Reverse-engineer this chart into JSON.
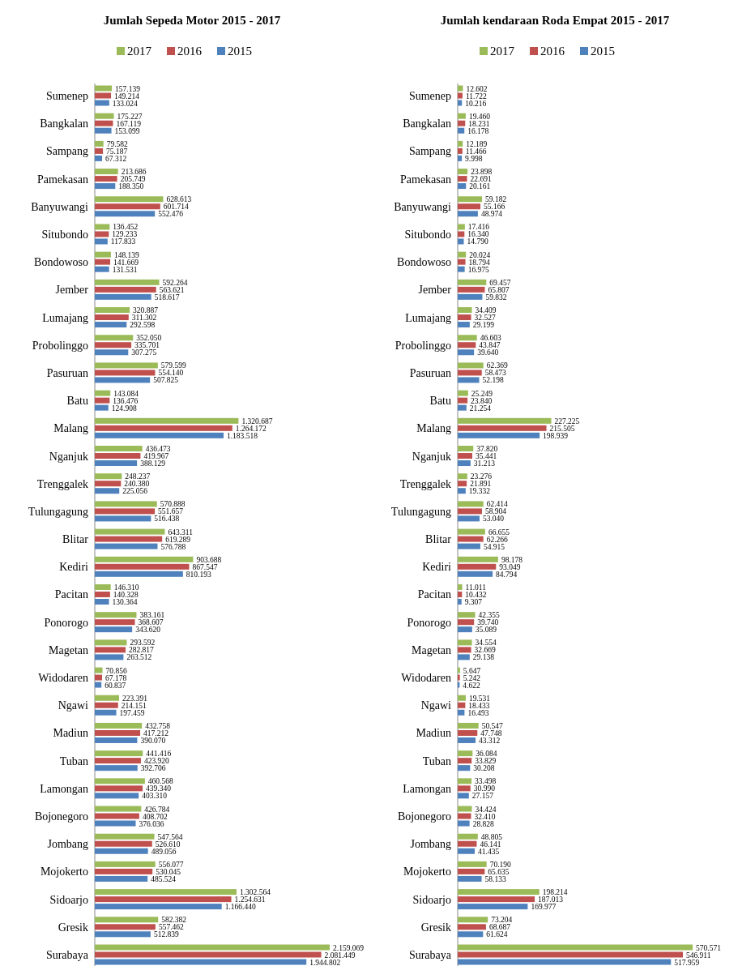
{
  "chart_data": [
    {
      "type": "bar",
      "orientation": "horizontal",
      "title": "Jumlah Sepeda Motor 2015 - 2017",
      "legend": "top",
      "categories": [
        "Sumenep",
        "Bangkalan",
        "Sampang",
        "Pamekasan",
        "Banyuwangi",
        "Situbondo",
        "Bondowoso",
        "Jember",
        "Lumajang",
        "Probolinggo",
        "Pasuruan",
        "Batu",
        "Malang",
        "Nganjuk",
        "Trenggalek",
        "Tulungagung",
        "Blitar",
        "Kediri",
        "Pacitan",
        "Ponorogo",
        "Magetan",
        "Widodaren",
        "Ngawi",
        "Madiun",
        "Tuban",
        "Lamongan",
        "Bojonegoro",
        "Jombang",
        "Mojokerto",
        "Sidoarjo",
        "Gresik",
        "Surabaya"
      ],
      "series": [
        {
          "name": "2017",
          "color": "#9bbb59",
          "values": [
            157139,
            175227,
            79582,
            213686,
            628613,
            136452,
            148139,
            592264,
            320887,
            352050,
            579599,
            143084,
            1320687,
            436473,
            248237,
            570888,
            643311,
            903688,
            146310,
            383161,
            293592,
            70856,
            223391,
            432758,
            441416,
            460568,
            426784,
            547564,
            556077,
            1302564,
            582382,
            2159069
          ],
          "value_labels": [
            "157.139",
            "175.227",
            "79.582",
            "213.686",
            "628.613",
            "136.452",
            "148.139",
            "592.264",
            "320.887",
            "352.050",
            "579.599",
            "143.084",
            "1.320.687",
            "436.473",
            "248.237",
            "570.888",
            "643.311",
            "903.688",
            "146.310",
            "383.161",
            "293.592",
            "70.856",
            "223.391",
            "432.758",
            "441.416",
            "460.568",
            "426.784",
            "547.564",
            "556.077",
            "1.302.564",
            "582.382",
            "2.159.069"
          ]
        },
        {
          "name": "2016",
          "color": "#c0504d",
          "values": [
            149214,
            167119,
            75187,
            205749,
            601714,
            129233,
            141669,
            563621,
            311302,
            335701,
            554140,
            136476,
            1264172,
            419967,
            240380,
            551657,
            619289,
            867547,
            140328,
            368607,
            282817,
            67178,
            214151,
            417212,
            423920,
            439340,
            408702,
            526610,
            530045,
            1254631,
            557462,
            2081449
          ],
          "value_labels": [
            "149.214",
            "167.119",
            "75.187",
            "205.749",
            "601.714",
            "129.233",
            "141.669",
            "563.621",
            "311.302",
            "335.701",
            "554.140",
            "136.476",
            "1.264.172",
            "419.967",
            "240.380",
            "551.657",
            "619.289",
            "867.547",
            "140.328",
            "368.607",
            "282.817",
            "67.178",
            "214.151",
            "417.212",
            "423.920",
            "439.340",
            "408.702",
            "526.610",
            "530.045",
            "1.254.631",
            "557.462",
            "2.081.449"
          ]
        },
        {
          "name": "2015",
          "color": "#4f81bd",
          "values": [
            133024,
            153099,
            67312,
            188350,
            552476,
            117833,
            131531,
            518617,
            292598,
            307275,
            507825,
            124908,
            1183518,
            388129,
            225056,
            516438,
            576788,
            810193,
            130364,
            343620,
            263512,
            60837,
            197459,
            390070,
            392706,
            403310,
            376036,
            489056,
            485524,
            1166440,
            512839,
            1944802
          ],
          "value_labels": [
            "133.024",
            "153.099",
            "67.312",
            "188.350",
            "552.476",
            "117.833",
            "131.531",
            "518.617",
            "292.598",
            "307.275",
            "507.825",
            "124.908",
            "1.183.518",
            "388.129",
            "225.056",
            "516.438",
            "576.788",
            "810.193",
            "130.364",
            "343.620",
            "263.512",
            "60.837",
            "197.459",
            "390.070",
            "392.706",
            "403.310",
            "376.036",
            "489.056",
            "485.524",
            "1.166.440",
            "512.839",
            "1.944.802"
          ]
        }
      ]
    },
    {
      "type": "bar",
      "orientation": "horizontal",
      "title": "Jumlah kendaraan Roda Empat 2015 - 2017",
      "legend": "top",
      "categories": [
        "Sumenep",
        "Bangkalan",
        "Sampang",
        "Pamekasan",
        "Banyuwangi",
        "Situbondo",
        "Bondowoso",
        "Jember",
        "Lumajang",
        "Probolinggo",
        "Pasuruan",
        "Batu",
        "Malang",
        "Nganjuk",
        "Trenggalek",
        "Tulungagung",
        "Blitar",
        "Kediri",
        "Pacitan",
        "Ponorogo",
        "Magetan",
        "Widodaren",
        "Ngawi",
        "Madiun",
        "Tuban",
        "Lamongan",
        "Bojonegoro",
        "Jombang",
        "Mojokerto",
        "Sidoarjo",
        "Gresik",
        "Surabaya"
      ],
      "series": [
        {
          "name": "2017",
          "color": "#9bbb59",
          "values": [
            12602,
            19460,
            12189,
            23898,
            59182,
            17416,
            20024,
            69457,
            34409,
            46603,
            62369,
            25249,
            227225,
            37820,
            23276,
            62414,
            66655,
            98178,
            11011,
            42355,
            34554,
            5647,
            19531,
            50547,
            36084,
            33498,
            34424,
            48805,
            70190,
            198214,
            73204,
            570571
          ],
          "value_labels": [
            "12.602",
            "19.460",
            "12.189",
            "23.898",
            "59.182",
            "17.416",
            "20.024",
            "69.457",
            "34.409",
            "46.603",
            "62.369",
            "25.249",
            "227.225",
            "37.820",
            "23.276",
            "62.414",
            "66.655",
            "98.178",
            "11.011",
            "42.355",
            "34.554",
            "5.647",
            "19.531",
            "50.547",
            "36.084",
            "33.498",
            "34.424",
            "48.805",
            "70.190",
            "198.214",
            "73.204",
            "570.571"
          ]
        },
        {
          "name": "2016",
          "color": "#c0504d",
          "values": [
            11722,
            18231,
            11466,
            22691,
            55166,
            16340,
            18794,
            65807,
            32527,
            43847,
            58473,
            23840,
            215505,
            35441,
            21891,
            58904,
            62266,
            93049,
            10432,
            39740,
            32669,
            5242,
            18433,
            47748,
            33829,
            30990,
            32410,
            46141,
            65635,
            187013,
            68687,
            546911
          ],
          "value_labels": [
            "11.722",
            "18.231",
            "11.466",
            "22.691",
            "55.166",
            "16.340",
            "18.794",
            "65.807",
            "32.527",
            "43.847",
            "58.473",
            "23.840",
            "215.505",
            "35.441",
            "21.891",
            "58.904",
            "62.266",
            "93.049",
            "10.432",
            "39.740",
            "32.669",
            "5.242",
            "18.433",
            "47.748",
            "33.829",
            "30.990",
            "32.410",
            "46.141",
            "65.635",
            "187.013",
            "68.687",
            "546.911"
          ]
        },
        {
          "name": "2015",
          "color": "#4f81bd",
          "values": [
            10216,
            16178,
            9998,
            20161,
            48974,
            14790,
            16975,
            59832,
            29199,
            39640,
            52198,
            21254,
            198939,
            31213,
            19332,
            53040,
            54915,
            84794,
            9307,
            35089,
            29138,
            4622,
            16493,
            43312,
            30208,
            27157,
            28828,
            41435,
            58133,
            169977,
            61624,
            517959
          ],
          "value_labels": [
            "10.216",
            "16.178",
            "9.998",
            "20.161",
            "48.974",
            "14.790",
            "16.975",
            "59.832",
            "29.199",
            "39.640",
            "52.198",
            "21.254",
            "198.939",
            "31.213",
            "19.332",
            "53.040",
            "54.915",
            "84.794",
            "9.307",
            "35.089",
            "29.138",
            "4.622",
            "16.493",
            "43.312",
            "30.208",
            "27.157",
            "28.828",
            "41.435",
            "58.133",
            "169.977",
            "61.624",
            "517.959"
          ]
        }
      ]
    }
  ]
}
